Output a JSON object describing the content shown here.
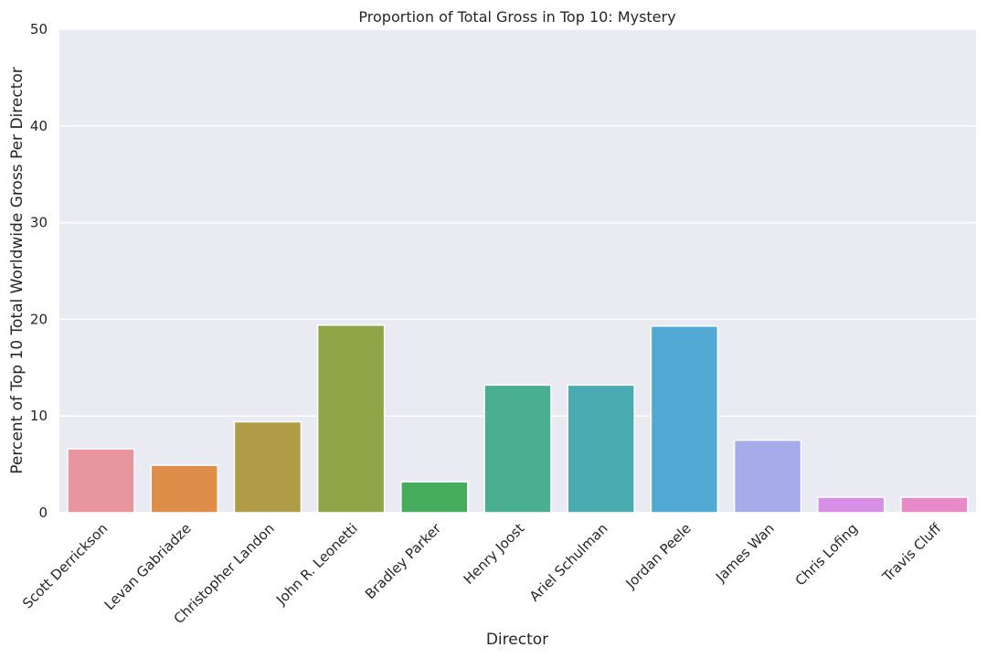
{
  "chart_data": {
    "type": "bar",
    "title": "Proportion of Total Gross in Top 10: Mystery",
    "xlabel": "Director",
    "ylabel": "Percent of Top 10 Total Worldwide Gross Per Director",
    "ylim": [
      0,
      50
    ],
    "yticks": [
      "0",
      "10",
      "20",
      "30",
      "40",
      "50"
    ],
    "grid": true,
    "categories": [
      "Scott Derrickson",
      "Levan Gabriadze",
      "Christopher Landon",
      "John R. Leonetti",
      "Bradley Parker",
      "Henry Joost",
      "Ariel Schulman",
      "Jordan Peele",
      "James Wan",
      "Chris Lofing",
      "Travis Cluff"
    ],
    "values": [
      6.6,
      4.9,
      9.4,
      19.4,
      3.2,
      13.2,
      13.2,
      19.3,
      7.5,
      1.6,
      1.6
    ],
    "colors": [
      "#e8959f",
      "#de8e48",
      "#b09b47",
      "#8ea547",
      "#46ad5f",
      "#4aae91",
      "#4aabb1",
      "#52a9d3",
      "#a7abe9",
      "#d78ee7",
      "#e889c8"
    ]
  }
}
